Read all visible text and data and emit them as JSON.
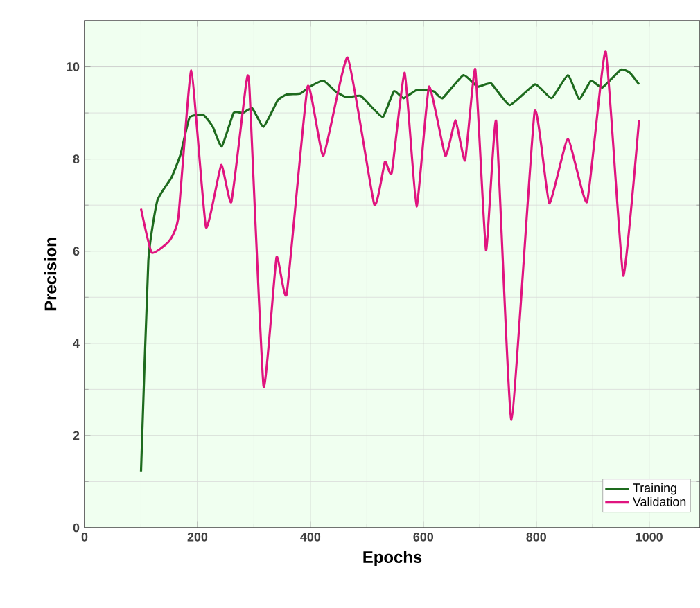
{
  "chart_data": {
    "type": "line",
    "xlabel": "Epochs",
    "ylabel": "Precision",
    "xlim": [
      0,
      1090
    ],
    "ylim": [
      0,
      11
    ],
    "xticks": [
      0,
      200,
      400,
      600,
      800,
      1000
    ],
    "yticks": [
      0,
      2,
      4,
      6,
      8,
      10
    ],
    "grid": true,
    "legend": "bottom right",
    "marker": "none",
    "line_style": "solid",
    "series": [
      {
        "name": "Training",
        "color": "#1e6b1e",
        "x": [
          100,
          113,
          129,
          154,
          170,
          186,
          211,
          227,
          243,
          264,
          280,
          297,
          317,
          342,
          358,
          382,
          399,
          423,
          444,
          464,
          489,
          513,
          529,
          548,
          565,
          589,
          618,
          634,
          671,
          696,
          720,
          753,
          798,
          827,
          856,
          876,
          897,
          917,
          950,
          966,
          982
        ],
        "values": [
          1.22,
          5.8,
          7.1,
          7.6,
          8.1,
          8.9,
          8.95,
          8.7,
          8.27,
          9.0,
          9.0,
          9.1,
          8.7,
          9.27,
          9.4,
          9.42,
          9.57,
          9.7,
          9.47,
          9.34,
          9.37,
          9.07,
          8.92,
          9.47,
          9.32,
          9.5,
          9.47,
          9.32,
          9.82,
          9.57,
          9.64,
          9.17,
          9.62,
          9.32,
          9.82,
          9.3,
          9.7,
          9.55,
          9.94,
          9.87,
          9.62
        ]
      },
      {
        "name": "Validation",
        "color": "#e0147f",
        "x": [
          100,
          119,
          150,
          166,
          189,
          215,
          242,
          260,
          286,
          292,
          317,
          340,
          358,
          395,
          423,
          466,
          513,
          532,
          544,
          567,
          588,
          610,
          639,
          657,
          674,
          692,
          711,
          729,
          756,
          797,
          823,
          856,
          890,
          923,
          954,
          982
        ],
        "values": [
          6.92,
          5.97,
          6.22,
          6.72,
          9.92,
          6.52,
          7.87,
          7.07,
          9.62,
          9.54,
          3.07,
          5.87,
          5.07,
          9.57,
          8.07,
          10.2,
          7.02,
          7.94,
          7.7,
          9.87,
          6.97,
          9.57,
          8.07,
          8.84,
          7.97,
          9.95,
          6.02,
          8.82,
          2.34,
          9.02,
          7.04,
          8.44,
          7.07,
          10.34,
          5.47,
          8.84
        ]
      }
    ]
  }
}
